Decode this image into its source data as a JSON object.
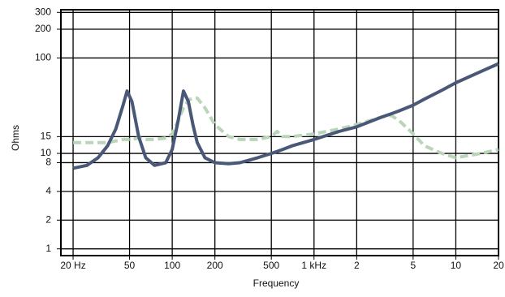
{
  "chart_data": {
    "type": "line",
    "x_label": "Frequency",
    "y_label": "Ohms",
    "x_log": true,
    "y_log": true,
    "grid": true,
    "xlim": [
      16.4,
      20000
    ],
    "ylim": [
      0.85,
      320
    ],
    "xticks": [
      {
        "value": 20,
        "label": "20 Hz"
      },
      50,
      100,
      200,
      500,
      {
        "value": 1000,
        "label": "1 kHz"
      },
      {
        "value": 2000,
        "label": "2"
      },
      {
        "value": 5000,
        "label": "5"
      },
      {
        "value": 10000,
        "label": "10"
      },
      {
        "value": 20000,
        "label": "20"
      }
    ],
    "yticks": [
      1,
      2,
      4,
      8,
      10,
      15,
      100,
      200,
      300
    ],
    "x": [
      20,
      25,
      30,
      35,
      40,
      45,
      48,
      52,
      58,
      65,
      75,
      90,
      100,
      110,
      120,
      130,
      140,
      150,
      170,
      200,
      250,
      300,
      400,
      500,
      550,
      600,
      700,
      1000,
      1500,
      2000,
      3000,
      3500,
      4000,
      5000,
      6000,
      8000,
      10000,
      15000,
      20000
    ],
    "series": [
      {
        "color": "#4a5878",
        "dashed": false,
        "values": [
          7,
          7.5,
          9,
          12,
          18,
          32,
          45,
          35,
          15,
          9,
          7.5,
          8,
          11,
          22,
          45,
          35,
          20,
          13,
          9,
          8,
          7.8,
          8,
          9,
          10,
          10.5,
          11,
          12,
          14,
          17,
          19,
          24,
          26,
          28,
          32,
          37,
          46,
          55,
          72,
          87
        ]
      },
      {
        "color": "#b9d6b9",
        "dashed": true,
        "values": [
          13,
          13,
          13,
          13,
          13.5,
          14,
          14,
          14,
          14.5,
          14,
          14,
          14.5,
          16,
          22,
          30,
          36,
          38,
          38,
          30,
          20,
          15,
          14,
          14,
          15,
          17,
          15,
          15,
          16,
          18,
          20,
          24,
          25,
          22,
          16,
          12,
          10,
          9,
          10,
          11
        ]
      }
    ]
  }
}
